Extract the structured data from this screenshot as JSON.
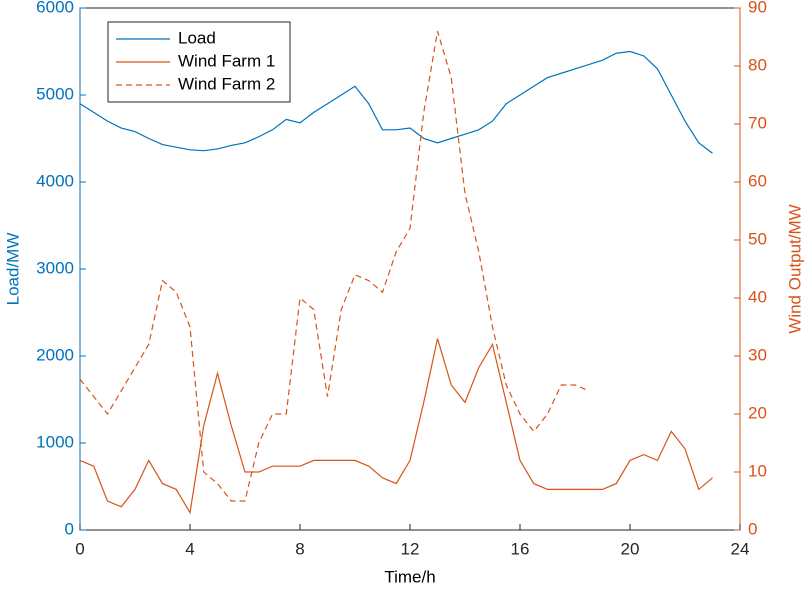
{
  "chart_data": {
    "type": "line",
    "x_label": "Time/h",
    "y_label": "Load/MW",
    "y2_label": "Wind Output/MW",
    "x": [
      0,
      0.5,
      1,
      1.5,
      2,
      2.5,
      3,
      3.5,
      4,
      4.5,
      5,
      5.5,
      6,
      6.5,
      7,
      7.5,
      8,
      8.5,
      9,
      9.5,
      10,
      10.5,
      11,
      11.5,
      12,
      12.5,
      13,
      13.5,
      14,
      14.5,
      15,
      15.5,
      16,
      16.5,
      17,
      17.5,
      18,
      18.5,
      19,
      19.5,
      20,
      20.5,
      21,
      21.5,
      22,
      22.5,
      23
    ],
    "series": [
      {
        "name": "Load",
        "color": "#0072bd",
        "dash": "solid",
        "axis": "y",
        "values": [
          4900,
          4800,
          4700,
          4620,
          4580,
          4500,
          4430,
          4400,
          4370,
          4360,
          4380,
          4420,
          4450,
          4520,
          4600,
          4720,
          4680,
          4800,
          4900,
          5000,
          5100,
          4900,
          4600,
          4600,
          4620,
          4500,
          4450,
          4500,
          4550,
          4600,
          4700,
          4900,
          5000,
          5100,
          5200,
          5250,
          5300,
          5350,
          5400,
          5480,
          5500,
          5450,
          5300,
          5000,
          4700,
          4450,
          4330
        ]
      },
      {
        "name": "Wind Farm 1",
        "color": "#d95319",
        "dash": "solid",
        "axis": "y2",
        "values": [
          12,
          11,
          5,
          4,
          7,
          12,
          8,
          7,
          3,
          18,
          27,
          18,
          10,
          10,
          11,
          11,
          11,
          12,
          12,
          12,
          12,
          11,
          9,
          8,
          12,
          22,
          33,
          25,
          22,
          28,
          32,
          22,
          12,
          8,
          7,
          7,
          7,
          7,
          7,
          8,
          12,
          13,
          12,
          17,
          14,
          7,
          9
        ]
      },
      {
        "name": "Wind Farm 2",
        "color": "#d95319",
        "dash": "dashed",
        "axis": "y2",
        "values": [
          26,
          23,
          20,
          24,
          28,
          32,
          43,
          41,
          35,
          10,
          8,
          5,
          5,
          15,
          20,
          20,
          40,
          38,
          23,
          38,
          44,
          43,
          41,
          48,
          52,
          72,
          86,
          78,
          58,
          48,
          35,
          25,
          20,
          17,
          20,
          25,
          25,
          24,
          null,
          null,
          null,
          null,
          null,
          null,
          null,
          null,
          null
        ]
      }
    ],
    "xlim": [
      0,
      24
    ],
    "xticks": [
      0,
      4,
      8,
      12,
      16,
      20,
      24
    ],
    "ylim": [
      0,
      6000
    ],
    "yticks": [
      0,
      1000,
      2000,
      3000,
      4000,
      5000,
      6000
    ],
    "y2lim": [
      0,
      90
    ],
    "y2ticks": [
      0,
      10,
      20,
      30,
      40,
      50,
      60,
      70,
      80,
      90
    ],
    "y_color": "#0072bd",
    "y2_color": "#d95319",
    "legend": "upper left",
    "grid": false
  }
}
